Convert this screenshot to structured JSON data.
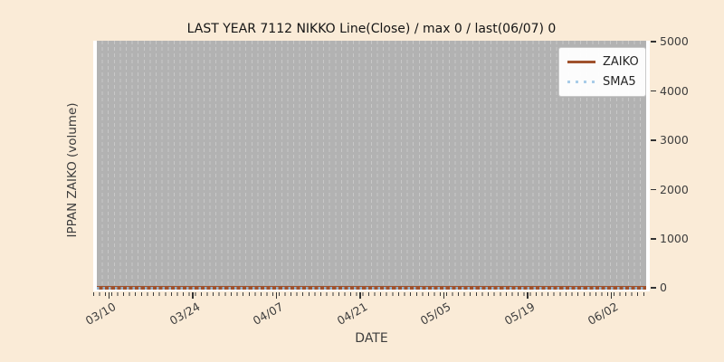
{
  "figure": {
    "background_color": "#faebd7",
    "plot_background_color": "#ffffff",
    "plot_fill_color": "#b2b2b2"
  },
  "chart_data": {
    "type": "line",
    "title": "LAST YEAR 7112 NIKKO Line(Close) / max 0 / last(06/07) 0",
    "xlabel": "DATE",
    "ylabel": "IPPAN ZAIKO (volume)",
    "x_tick_labels": [
      "03/10",
      "03/24",
      "04/07",
      "04/21",
      "05/05",
      "05/19",
      "06/02"
    ],
    "y_tick_labels": [
      "0",
      "1000",
      "2000",
      "3000",
      "4000",
      "5000"
    ],
    "ylim": [
      0,
      5000
    ],
    "x_range": "last year of daily dates ending 06/07",
    "grid": "vertical dashed gridline per day",
    "legend_position": "upper right",
    "max_value": 0,
    "last_date": "06/07",
    "last_value": 0,
    "series": [
      {
        "name": "ZAIKO",
        "color": "#a0522d",
        "style": "solid",
        "values_at_ticks": [
          0,
          0,
          0,
          0,
          0,
          0,
          0
        ]
      },
      {
        "name": "SMA5",
        "color": "#a8cce8",
        "style": "dotted",
        "values_at_ticks": [
          0,
          0,
          0,
          0,
          0,
          0,
          0
        ]
      }
    ]
  }
}
